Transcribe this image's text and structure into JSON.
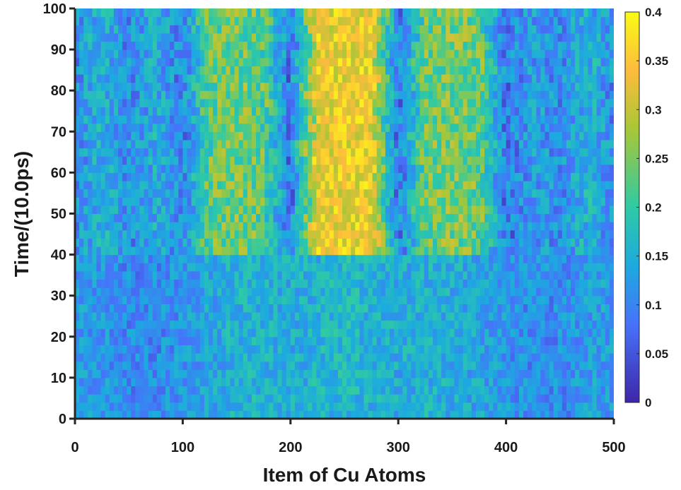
{
  "chart_data": {
    "type": "heatmap",
    "title": "",
    "xlabel": "Item of Cu Atoms",
    "ylabel": "Time/(10.0ps)",
    "xlim": [
      0,
      500
    ],
    "ylim": [
      0,
      100
    ],
    "x_ticks": [
      0,
      100,
      200,
      300,
      400,
      500
    ],
    "y_ticks": [
      0,
      10,
      20,
      30,
      40,
      50,
      60,
      70,
      80,
      90,
      100
    ],
    "colorbar": {
      "colormap": "parula",
      "range": [
        0,
        0.4
      ],
      "ticks": [
        0,
        0.05,
        0.1,
        0.15,
        0.2,
        0.25,
        0.3,
        0.35,
        0.4
      ],
      "position": "right"
    },
    "grid": false,
    "transition_time": 40,
    "value_profile_before_transition": {
      "x": [
        0,
        25,
        50,
        75,
        100,
        125,
        150,
        175,
        200,
        225,
        250,
        275,
        300,
        325,
        350,
        375,
        400,
        425,
        450,
        475,
        500
      ],
      "values": [
        0.12,
        0.11,
        0.1,
        0.1,
        0.11,
        0.13,
        0.15,
        0.15,
        0.14,
        0.15,
        0.16,
        0.15,
        0.14,
        0.15,
        0.14,
        0.13,
        0.11,
        0.1,
        0.1,
        0.12,
        0.12
      ]
    },
    "value_profile_after_transition": {
      "x": [
        0,
        25,
        50,
        75,
        100,
        125,
        150,
        175,
        200,
        225,
        250,
        275,
        300,
        325,
        350,
        375,
        400,
        425,
        450,
        475,
        500
      ],
      "values": [
        0.1,
        0.15,
        0.1,
        0.14,
        0.09,
        0.22,
        0.24,
        0.22,
        0.08,
        0.33,
        0.33,
        0.33,
        0.08,
        0.23,
        0.24,
        0.23,
        0.08,
        0.12,
        0.1,
        0.15,
        0.1
      ]
    },
    "colors": {
      "axis": "#262626",
      "ramp": [
        "#3e26a8",
        "#4772fa",
        "#1caadf",
        "#2ecaa5",
        "#a8c736",
        "#fdbc3c",
        "#f9fb15"
      ]
    }
  }
}
